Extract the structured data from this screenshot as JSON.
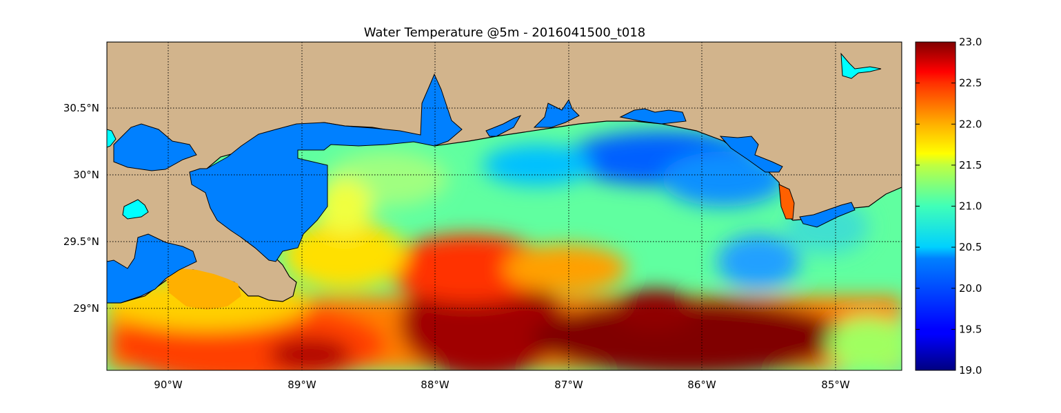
{
  "title": "Water Temperature @5m - 2016041500_t018",
  "map": {
    "lon_range": [
      -90.5,
      -84.5
    ],
    "lat_range": [
      28.55,
      31.0
    ],
    "x_ticks": [
      "90°W",
      "89°W",
      "88°W",
      "87°W",
      "86°W",
      "85°W"
    ],
    "y_ticks": [
      "30.5°N",
      "30°N",
      "29.5°N",
      "29°N"
    ],
    "grid": true,
    "colors": {
      "land": "#D2B48C",
      "inland_water": "#0080FF",
      "lake_water": "#00FFFF",
      "coastline": "#000000"
    }
  },
  "colorbar": {
    "min": 19.0,
    "max": 23.0,
    "tick_labels": [
      "23.0",
      "22.5",
      "22.0",
      "21.5",
      "21.0",
      "20.5",
      "20.0",
      "19.5",
      "19.0"
    ],
    "colormap": "jet"
  }
}
